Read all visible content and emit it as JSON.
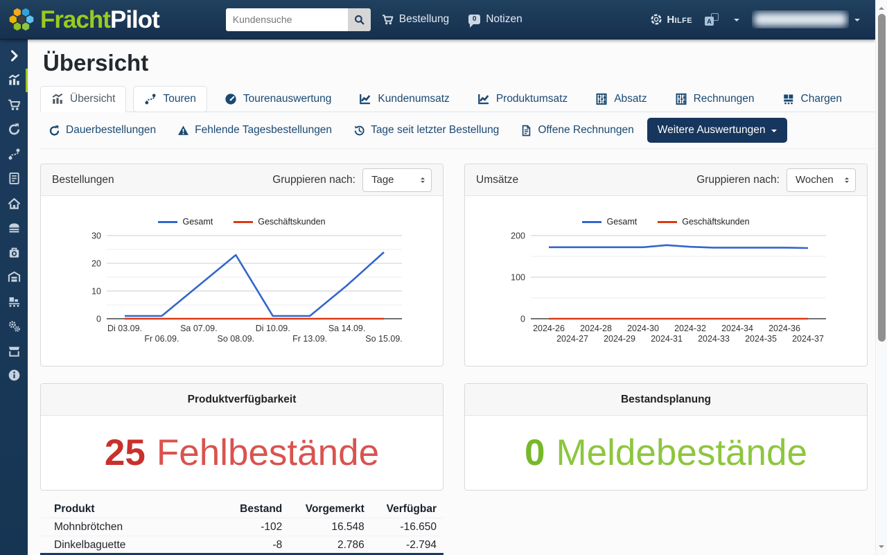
{
  "page": {
    "title": "Übersicht"
  },
  "navbar": {
    "brand": {
      "part1": "Fracht",
      "part2": "Pilot",
      "part1_color": "#9aca1f",
      "part2_color": "#ffffff"
    },
    "search": {
      "placeholder": "Kundensuche",
      "button_icon": "search-icon"
    },
    "links": [
      {
        "label": "Bestellung",
        "icon": "cart"
      },
      {
        "label": "Notizen",
        "icon": "chat-badge",
        "badge": "0"
      }
    ],
    "help": {
      "label": "Hilfe",
      "icon": "life-ring"
    },
    "language": {
      "icon": "translate-icon"
    },
    "user": {
      "icon": "caret-down-icon"
    }
  },
  "sidebar": {
    "active_color": "#9aca1f",
    "items": [
      {
        "icon": "chevron-right"
      },
      {
        "icon": "bar-chart",
        "active": true
      },
      {
        "icon": "cart"
      },
      {
        "icon": "refresh"
      },
      {
        "icon": "route"
      },
      {
        "icon": "invoice"
      },
      {
        "icon": "home"
      },
      {
        "icon": "bread"
      },
      {
        "icon": "box"
      },
      {
        "icon": "warehouse"
      },
      {
        "icon": "conveyor"
      },
      {
        "icon": "gears"
      },
      {
        "icon": "store"
      },
      {
        "icon": "info"
      }
    ]
  },
  "tabs": [
    {
      "label": "Übersicht",
      "icon": "bar-chart",
      "state": "active"
    },
    {
      "label": "Touren",
      "icon": "route",
      "state": "boxed"
    },
    {
      "label": "Tourenauswertung",
      "icon": "speedometer",
      "state": "plain"
    },
    {
      "label": "Kundenumsatz",
      "icon": "line-chart",
      "state": "plain"
    },
    {
      "label": "Produktumsatz",
      "icon": "line-chart",
      "state": "plain"
    },
    {
      "label": "Absatz",
      "icon": "abacus",
      "state": "plain"
    },
    {
      "label": "Rechnungen",
      "icon": "abacus",
      "state": "plain"
    },
    {
      "label": "Chargen",
      "icon": "pallet",
      "state": "plain"
    }
  ],
  "actions": {
    "items": [
      {
        "label": "Dauerbestellungen",
        "icon": "refresh"
      },
      {
        "label": "Fehlende Tagesbestellungen",
        "icon": "warning"
      },
      {
        "label": "Tage seit letzter Bestellung",
        "icon": "history"
      },
      {
        "label": "Offene Rechnungen",
        "icon": "document"
      }
    ],
    "more_button": {
      "label": "Weitere Auswertungen"
    }
  },
  "group_by_label": "Gruppieren nach:",
  "chart_data": [
    {
      "type": "line",
      "title": "Bestellungen",
      "group_value": "Tage",
      "categories": [
        "Di 03.09.",
        "Fr 06.09.",
        "Sa 07.09.",
        "So 08.09.",
        "Di 10.09.",
        "Fr 13.09.",
        "Sa 14.09.",
        "So 15.09."
      ],
      "series": [
        {
          "name": "Gesamt",
          "color": "#3366cc",
          "values": [
            1,
            1,
            12,
            23,
            1,
            1,
            12,
            24
          ]
        },
        {
          "name": "Geschäftskunden",
          "color": "#dc3912",
          "values": [
            0,
            0,
            0,
            0,
            0,
            0,
            0,
            0
          ]
        }
      ],
      "ylim": [
        0,
        30
      ],
      "yticks": [
        0,
        10,
        20,
        30
      ],
      "yminor": [
        5,
        15,
        25
      ],
      "legend_position": "top",
      "grid": true
    },
    {
      "type": "line",
      "title": "Umsätze",
      "group_value": "Wochen",
      "categories": [
        "2024-26",
        "2024-27",
        "2024-28",
        "2024-29",
        "2024-30",
        "2024-31",
        "2024-32",
        "2024-33",
        "2024-34",
        "2024-35",
        "2024-36",
        "2024-37"
      ],
      "series": [
        {
          "name": "Gesamt",
          "color": "#3366cc",
          "values": [
            172,
            172,
            172,
            172,
            172,
            177,
            173,
            171,
            171,
            171,
            171,
            170
          ]
        },
        {
          "name": "Geschäftskunden",
          "color": "#dc3912",
          "values": [
            0,
            0,
            0,
            0,
            0,
            0,
            0,
            0,
            0,
            0,
            0,
            0
          ]
        }
      ],
      "ylim": [
        0,
        200
      ],
      "yticks": [
        0,
        100,
        200
      ],
      "yminor": [
        50,
        150
      ],
      "legend_position": "top",
      "grid": true
    }
  ],
  "stat_cards": [
    {
      "title": "Produktverfügbarkeit",
      "value": "25",
      "label": "Fehlbestände",
      "value_color": "#c9302c",
      "label_color": "#d9534f"
    },
    {
      "title": "Bestandsplanung",
      "value": "0",
      "label": "Meldebestände",
      "value_color": "#76b82a",
      "label_color": "#8dc63e"
    }
  ],
  "availability_table": {
    "columns": [
      "Produkt",
      "Bestand",
      "Vorgemerkt",
      "Verfügbar"
    ],
    "rows": [
      [
        "Mohnbrötchen",
        "-102",
        "16.548",
        "-16.650"
      ],
      [
        "Dinkelbaguette",
        "-8",
        "2.786",
        "-2.794"
      ]
    ]
  },
  "colors": {
    "navbar_navy": "#17365d",
    "link_navy": "#1a4971",
    "chart_blue": "#3366cc",
    "chart_red": "#dc3912",
    "brand_green": "#9aca1f"
  }
}
